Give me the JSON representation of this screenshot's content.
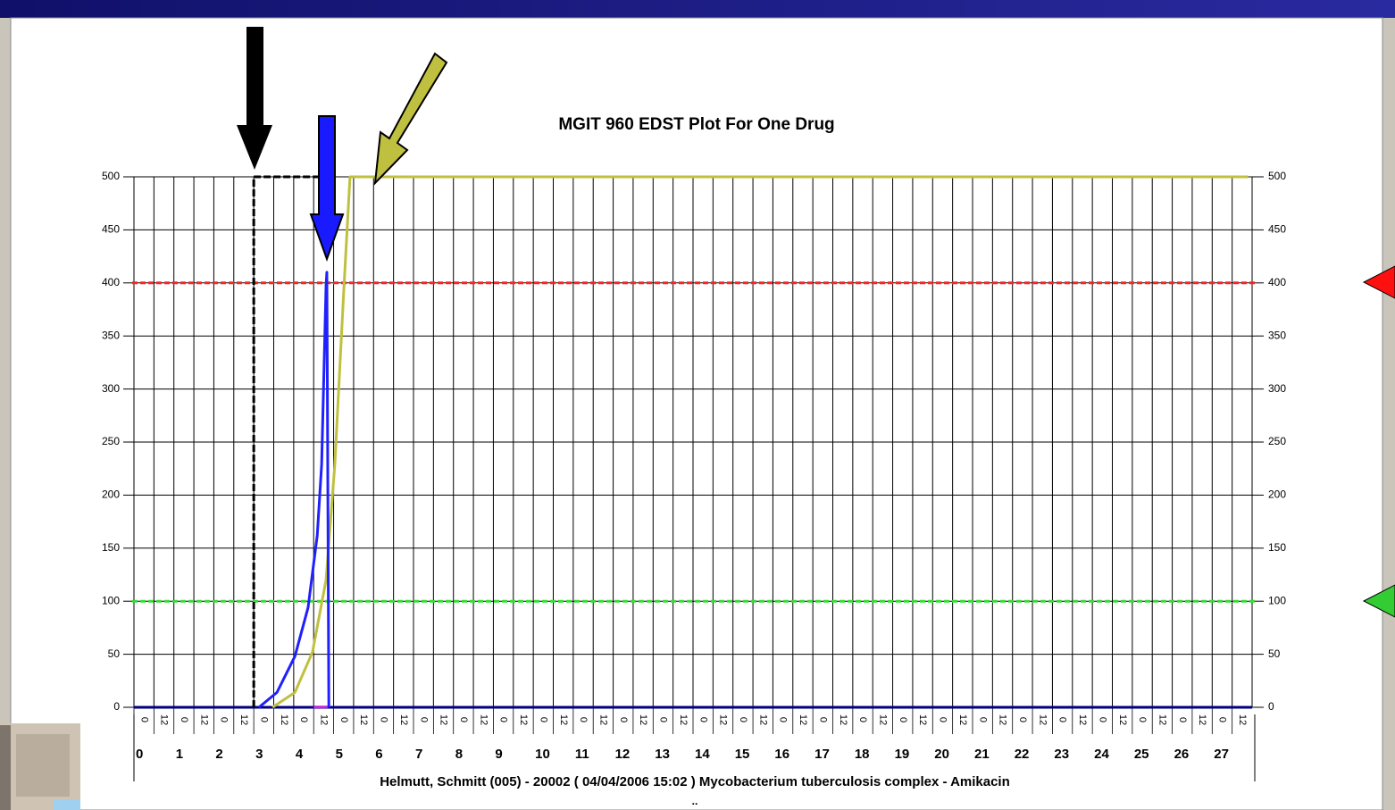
{
  "chart_data": {
    "type": "line",
    "title": "MGIT 960 EDST Plot For One Drug",
    "xlabel": "Helmutt, Schmitt (005)  - 20002 ( 04/04/2006 15:02 ) Mycobacterium tuberculosis complex - Amikacin",
    "note": "..",
    "xlim": [
      0,
      28
    ],
    "xticks": [
      0,
      1,
      2,
      3,
      4,
      5,
      6,
      7,
      8,
      9,
      10,
      11,
      12,
      13,
      14,
      15,
      16,
      17,
      18,
      19,
      20,
      21,
      22,
      23,
      24,
      25,
      26,
      27
    ],
    "hour_ticks": [
      {
        "value": 0,
        "label": "0"
      },
      {
        "value": 0.5,
        "label": "12"
      },
      {
        "value": 1,
        "label": "0"
      },
      {
        "value": 1.5,
        "label": "12"
      },
      {
        "value": 2,
        "label": "0"
      },
      {
        "value": 2.5,
        "label": "12"
      },
      {
        "value": 3,
        "label": "0"
      },
      {
        "value": 3.5,
        "label": "12"
      },
      {
        "value": 4,
        "label": "0"
      },
      {
        "value": 4.5,
        "label": "12"
      },
      {
        "value": 5,
        "label": "0"
      },
      {
        "value": 5.5,
        "label": "12"
      },
      {
        "value": 6,
        "label": "0"
      },
      {
        "value": 6.5,
        "label": "12"
      },
      {
        "value": 7,
        "label": "0"
      },
      {
        "value": 7.5,
        "label": "12"
      },
      {
        "value": 8,
        "label": "0"
      },
      {
        "value": 8.5,
        "label": "12"
      },
      {
        "value": 9,
        "label": "0"
      },
      {
        "value": 9.5,
        "label": "12"
      },
      {
        "value": 10,
        "label": "0"
      },
      {
        "value": 10.5,
        "label": "12"
      },
      {
        "value": 11,
        "label": "0"
      },
      {
        "value": 11.5,
        "label": "12"
      },
      {
        "value": 12,
        "label": "0"
      },
      {
        "value": 12.5,
        "label": "12"
      },
      {
        "value": 13,
        "label": "0"
      },
      {
        "value": 13.5,
        "label": "12"
      },
      {
        "value": 14,
        "label": "0"
      },
      {
        "value": 14.5,
        "label": "12"
      },
      {
        "value": 15,
        "label": "0"
      },
      {
        "value": 15.5,
        "label": "12"
      },
      {
        "value": 16,
        "label": "0"
      },
      {
        "value": 16.5,
        "label": "12"
      },
      {
        "value": 17,
        "label": "0"
      },
      {
        "value": 17.5,
        "label": "12"
      },
      {
        "value": 18,
        "label": "0"
      },
      {
        "value": 18.5,
        "label": "12"
      },
      {
        "value": 19,
        "label": "0"
      },
      {
        "value": 19.5,
        "label": "12"
      },
      {
        "value": 20,
        "label": "0"
      },
      {
        "value": 20.5,
        "label": "12"
      },
      {
        "value": 21,
        "label": "0"
      },
      {
        "value": 21.5,
        "label": "12"
      },
      {
        "value": 22,
        "label": "0"
      },
      {
        "value": 22.5,
        "label": "12"
      },
      {
        "value": 23,
        "label": "0"
      },
      {
        "value": 23.5,
        "label": "12"
      },
      {
        "value": 24,
        "label": "0"
      },
      {
        "value": 24.5,
        "label": "12"
      },
      {
        "value": 25,
        "label": "0"
      },
      {
        "value": 25.5,
        "label": "12"
      },
      {
        "value": 26,
        "label": "0"
      },
      {
        "value": 26.5,
        "label": "12"
      },
      {
        "value": 27,
        "label": "0"
      },
      {
        "value": 27.5,
        "label": "12"
      }
    ],
    "ylim": [
      0,
      500
    ],
    "yticks": [
      0,
      50,
      100,
      150,
      200,
      250,
      300,
      350,
      400,
      450,
      500
    ],
    "y2lim": [
      0,
      500
    ],
    "y2ticks": [
      0,
      50,
      100,
      150,
      200,
      250,
      300,
      350,
      400,
      450,
      500
    ],
    "grid": true,
    "reference_lines": [
      {
        "value": 400,
        "color": "#ff2020"
      },
      {
        "value": 100,
        "color": "#33dd33"
      }
    ],
    "series": [
      {
        "color": "#000080",
        "width": 3,
        "dash": false,
        "x": [
          0,
          28
        ],
        "values": [
          0,
          0
        ]
      },
      {
        "color": "#ff00ff",
        "width": 2,
        "dash": false,
        "x": [
          4.5,
          4.85
        ],
        "values": [
          0,
          0
        ]
      },
      {
        "color": "#000000",
        "width": 3,
        "dash": true,
        "x": [
          3,
          3,
          4.7
        ],
        "values": [
          0,
          500,
          500
        ]
      },
      {
        "color": "#c0c040",
        "width": 3,
        "dash": false,
        "x": [
          3.47,
          4.03,
          4.47,
          4.81,
          5.03,
          5.26,
          5.41,
          27.9
        ],
        "values": [
          0,
          14,
          52,
          120,
          229,
          397,
          500,
          500
        ]
      },
      {
        "color": "#2020ff",
        "width": 3,
        "dash": false,
        "x": [
          3.13,
          3.58,
          4.03,
          4.36,
          4.59,
          4.7,
          4.81,
          4.83,
          4.88
        ],
        "values": [
          0,
          14,
          48,
          94,
          162,
          229,
          397,
          410,
          0
        ]
      }
    ]
  }
}
